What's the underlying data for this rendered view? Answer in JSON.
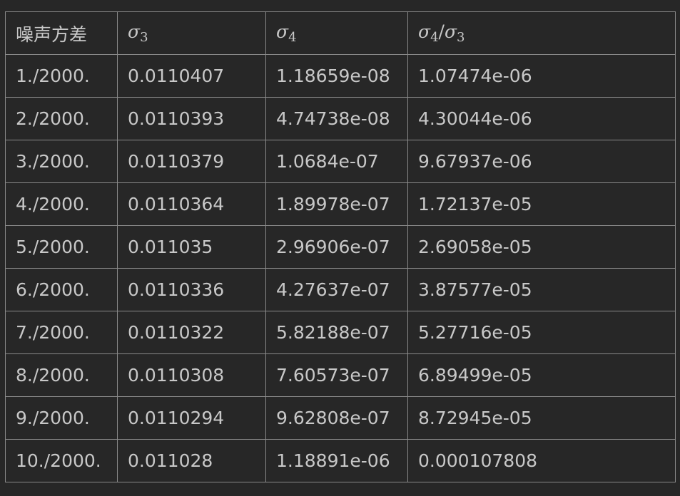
{
  "table": {
    "headers": {
      "noise_variance": "噪声方差",
      "sigma3": {
        "symbol": "σ",
        "subscript": "3"
      },
      "sigma4": {
        "symbol": "σ",
        "subscript": "4"
      },
      "ratio": {
        "num_symbol": "σ",
        "num_subscript": "4",
        "slash": "/",
        "den_symbol": "σ",
        "den_subscript": "3"
      }
    },
    "rows": [
      {
        "noise": "1./2000.",
        "sigma3": "0.0110407",
        "sigma4": "1.18659e-08",
        "ratio": "1.07474e-06"
      },
      {
        "noise": "2./2000.",
        "sigma3": "0.0110393",
        "sigma4": "4.74738e-08",
        "ratio": "4.30044e-06"
      },
      {
        "noise": "3./2000.",
        "sigma3": "0.0110379",
        "sigma4": "1.0684e-07",
        "ratio": "9.67937e-06"
      },
      {
        "noise": "4./2000.",
        "sigma3": "0.0110364",
        "sigma4": "1.89978e-07",
        "ratio": "1.72137e-05"
      },
      {
        "noise": "5./2000.",
        "sigma3": "0.011035",
        "sigma4": "2.96906e-07",
        "ratio": "2.69058e-05"
      },
      {
        "noise": "6./2000.",
        "sigma3": "0.0110336",
        "sigma4": "4.27637e-07",
        "ratio": "3.87577e-05"
      },
      {
        "noise": "7./2000.",
        "sigma3": "0.0110322",
        "sigma4": "5.82188e-07",
        "ratio": "5.27716e-05"
      },
      {
        "noise": "8./2000.",
        "sigma3": "0.0110308",
        "sigma4": "7.60573e-07",
        "ratio": "6.89499e-05"
      },
      {
        "noise": "9./2000.",
        "sigma3": "0.0110294",
        "sigma4": "9.62808e-07",
        "ratio": "8.72945e-05"
      },
      {
        "noise": "10./2000.",
        "sigma3": "0.011028",
        "sigma4": "1.18891e-06",
        "ratio": "0.000107808"
      }
    ]
  }
}
